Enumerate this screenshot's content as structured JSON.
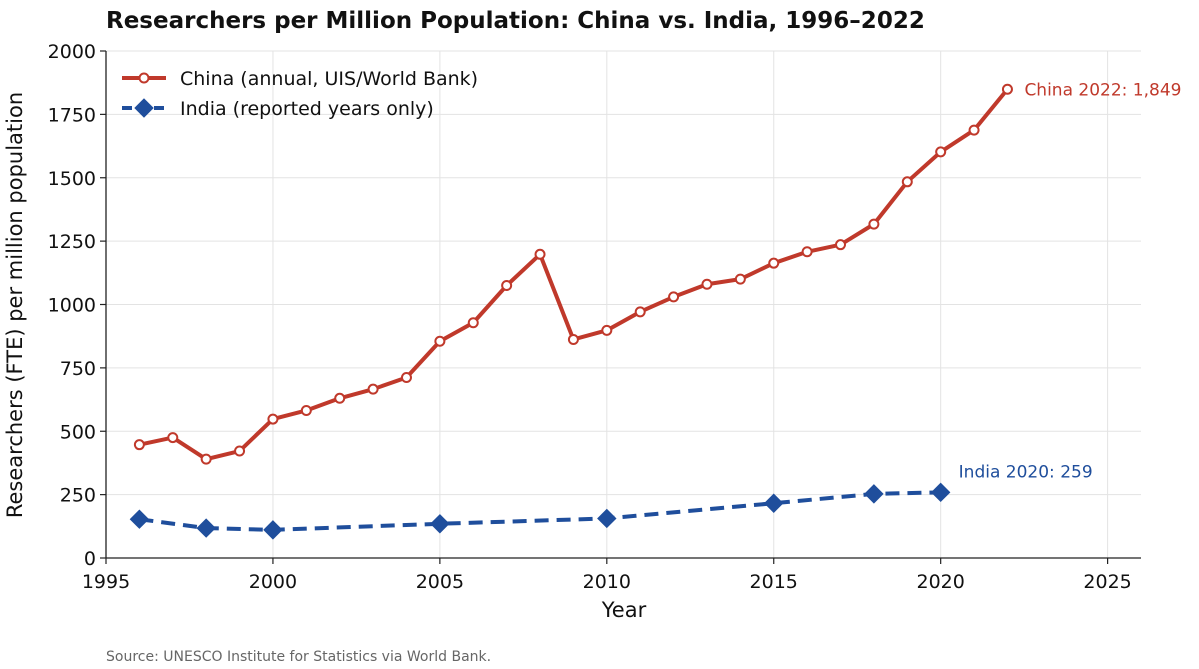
{
  "chart_data": {
    "type": "line",
    "title": "Researchers per Million Population: China vs. India, 1996–2022",
    "xlabel": "Year",
    "ylabel": "Researchers (FTE) per million population",
    "xlim": [
      1995,
      2026
    ],
    "ylim": [
      0,
      2000
    ],
    "xticks": [
      1995,
      2000,
      2005,
      2010,
      2015,
      2020,
      2025
    ],
    "yticks": [
      0,
      250,
      500,
      750,
      1000,
      1250,
      1500,
      1750,
      2000
    ],
    "grid": true,
    "legend_position": "top-left",
    "series": [
      {
        "name": "China (annual, UIS/World Bank)",
        "color": "#c0392b",
        "marker": "circle",
        "line_style": "solid",
        "x": [
          1996,
          1997,
          1998,
          1999,
          2000,
          2001,
          2002,
          2003,
          2004,
          2005,
          2006,
          2007,
          2008,
          2009,
          2010,
          2011,
          2012,
          2013,
          2014,
          2015,
          2016,
          2017,
          2018,
          2019,
          2020,
          2021,
          2022
        ],
        "values": [
          447,
          475,
          390,
          422,
          548,
          582,
          630,
          666,
          712,
          855,
          928,
          1075,
          1198,
          862,
          898,
          971,
          1030,
          1080,
          1100,
          1163,
          1208,
          1236,
          1317,
          1484,
          1602,
          1688,
          1849
        ]
      },
      {
        "name": "India (reported years only)",
        "color": "#1f4e9c",
        "marker": "diamond",
        "line_style": "dashed",
        "x": [
          1996,
          1998,
          2000,
          2005,
          2010,
          2015,
          2018,
          2020
        ],
        "values": [
          153,
          118,
          111,
          135,
          156,
          216,
          253,
          259
        ]
      }
    ],
    "annotations": [
      {
        "text": "China 2022: 1,849",
        "x": 2022,
        "y": 1849,
        "color": "#c0392b"
      },
      {
        "text": "India 2020: 259",
        "x": 2020,
        "y": 259,
        "color": "#1f4e9c"
      }
    ],
    "source": "Source: UNESCO Institute for Statistics via World Bank."
  }
}
